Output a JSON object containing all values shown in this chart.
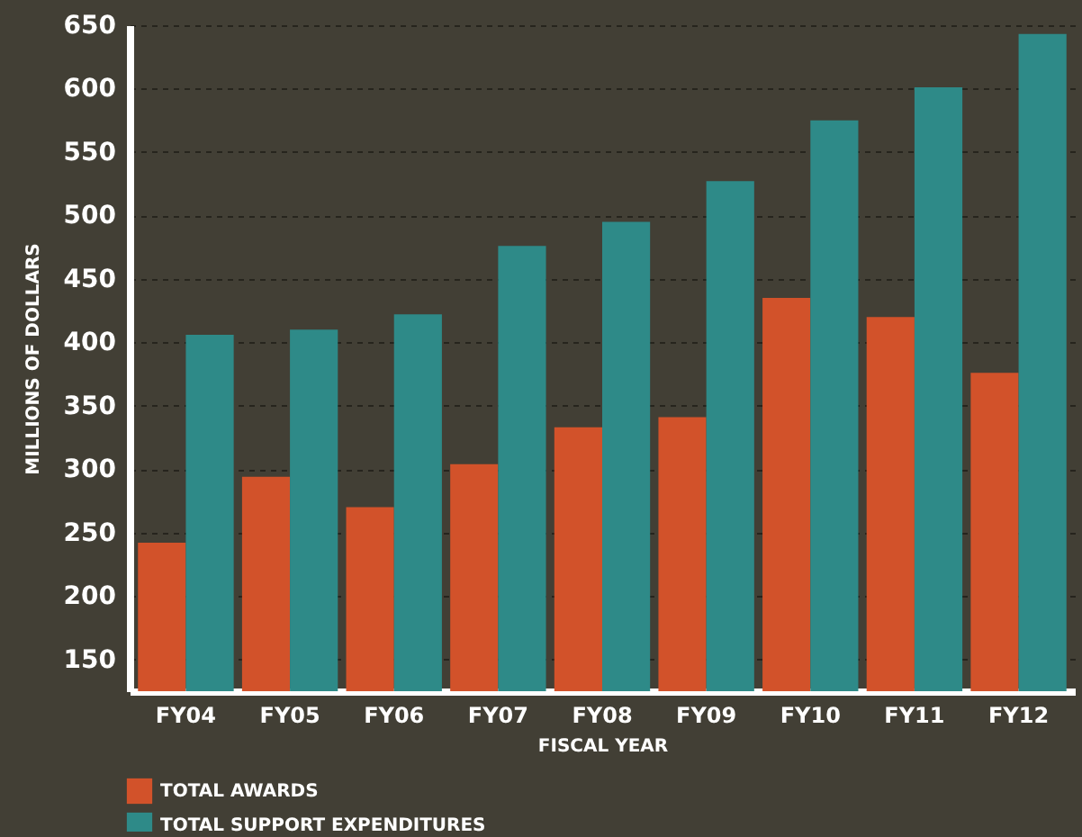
{
  "chart_data": {
    "type": "bar",
    "xlabel": "FISCAL YEAR",
    "ylabel": "MILLIONS OF DOLLARS",
    "categories": [
      "FY04",
      "FY05",
      "FY06",
      "FY07",
      "FY08",
      "FY09",
      "FY10",
      "FY11",
      "FY12"
    ],
    "series": [
      {
        "name": "TOTAL AWARDS",
        "color": "#d2522a",
        "values": [
          242,
          294,
          270,
          304,
          333,
          341,
          435,
          420,
          376
        ]
      },
      {
        "name": "TOTAL SUPPORT EXPENDITURES",
        "color": "#2e8a88",
        "values": [
          406,
          410,
          422,
          476,
          495,
          527,
          575,
          601,
          643
        ]
      }
    ],
    "ylim": [
      125,
      650
    ],
    "yticks": [
      150,
      200,
      250,
      300,
      350,
      400,
      450,
      500,
      550,
      600,
      650
    ],
    "grid": "y",
    "legend": "bottom left"
  }
}
